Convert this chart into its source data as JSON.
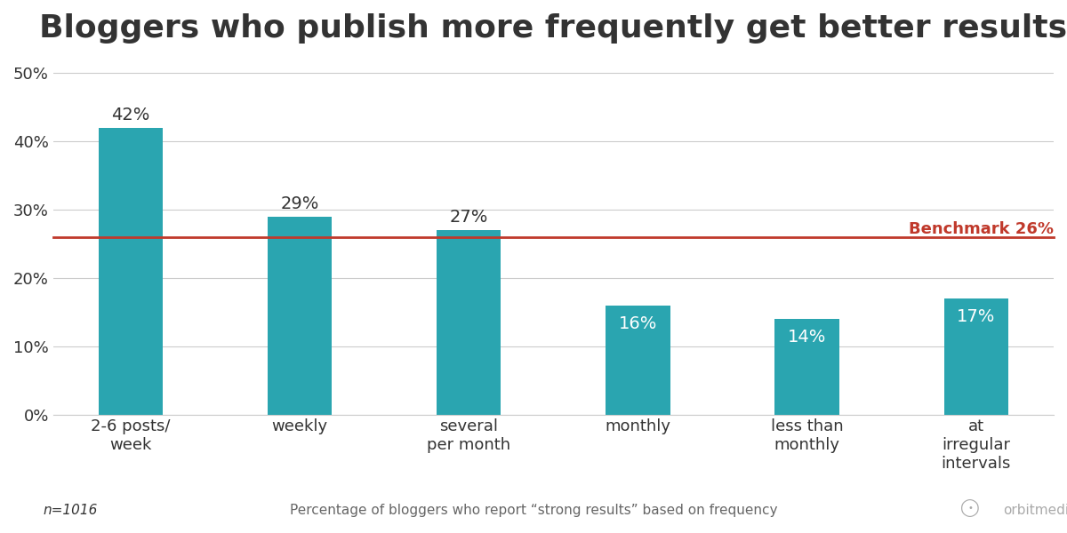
{
  "title": "Bloggers who publish more frequently get better results",
  "categories": [
    "2-6 posts/\nweek",
    "weekly",
    "several\nper month",
    "monthly",
    "less than\nmonthly",
    "at\nirregular\nintervals"
  ],
  "values": [
    42,
    29,
    27,
    16,
    14,
    17
  ],
  "bar_color": "#2aa5b0",
  "benchmark_value": 26,
  "benchmark_label": "Benchmark 26%",
  "benchmark_color": "#c0392b",
  "ylim": [
    0,
    52
  ],
  "yticks": [
    0,
    10,
    20,
    30,
    40,
    50
  ],
  "ytick_labels": [
    "0%",
    "10%",
    "20%",
    "30%",
    "40%",
    "50%"
  ],
  "footnote_left": "n=1016",
  "footnote_center": "Percentage of bloggers who report “strong results” based on frequency",
  "footnote_right": "orbitmedia.com",
  "title_fontsize": 26,
  "label_fontsize": 13,
  "tick_fontsize": 13,
  "bar_label_fontsize": 14,
  "footnote_fontsize": 11,
  "background_color": "#ffffff",
  "grid_color": "#cccccc",
  "text_color": "#333333",
  "bar_width": 0.38
}
